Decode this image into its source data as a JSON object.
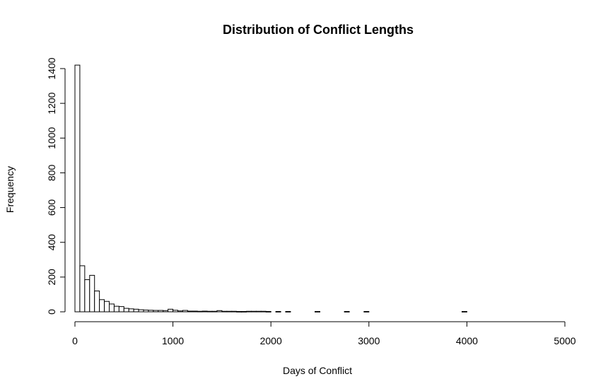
{
  "chart_data": {
    "type": "bar",
    "title": "Distribution of Conflict Lengths",
    "xlabel": "Days of Conflict",
    "ylabel": "Frequency",
    "xlim": [
      0,
      5000
    ],
    "ylim": [
      0,
      1400
    ],
    "x_ticks": [
      0,
      1000,
      2000,
      3000,
      4000,
      5000
    ],
    "y_ticks": [
      0,
      200,
      400,
      600,
      800,
      1000,
      1200,
      1400
    ],
    "bin_width": 50,
    "bin_starts": [
      0,
      50,
      100,
      150,
      200,
      250,
      300,
      350,
      400,
      450,
      500,
      550,
      600,
      650,
      700,
      750,
      800,
      850,
      900,
      950,
      1000,
      1050,
      1100,
      1150,
      1200,
      1250,
      1300,
      1350,
      1400,
      1450,
      1500,
      1550,
      1600,
      1650,
      1700,
      1750,
      1800,
      1850,
      1900,
      1950,
      2000,
      2050,
      2100,
      2150,
      2200,
      2250,
      2300,
      2350,
      2400,
      2450,
      2500,
      2550,
      2600,
      2650,
      2700,
      2750,
      2800,
      2850,
      2900,
      2950,
      3000,
      3050,
      3100,
      3150,
      3200,
      3250,
      3300,
      3350,
      3400,
      3450,
      3500,
      3550,
      3600,
      3650,
      3700,
      3750,
      3800,
      3850,
      3900,
      3950,
      4000,
      4050,
      4100,
      4150,
      4200,
      4250,
      4300,
      4350,
      4400,
      4450,
      4500,
      4550,
      4600,
      4650,
      4700,
      4750,
      4800,
      4850,
      4900,
      4950
    ],
    "values": [
      1420,
      265,
      185,
      210,
      120,
      70,
      60,
      45,
      32,
      30,
      20,
      17,
      15,
      12,
      10,
      9,
      8,
      8,
      7,
      15,
      9,
      5,
      8,
      4,
      4,
      3,
      4,
      3,
      3,
      7,
      3,
      3,
      3,
      2,
      2,
      3,
      3,
      3,
      3,
      2,
      0,
      2,
      0,
      2,
      0,
      0,
      0,
      0,
      0,
      2,
      0,
      0,
      0,
      0,
      0,
      2,
      0,
      0,
      0,
      2,
      0,
      0,
      0,
      0,
      0,
      0,
      0,
      0,
      0,
      0,
      0,
      0,
      0,
      0,
      0,
      0,
      0,
      0,
      0,
      2,
      0,
      0,
      0,
      0,
      0,
      0,
      0,
      0,
      0,
      0,
      0,
      0,
      0,
      0,
      0,
      0,
      0,
      0,
      0,
      0
    ]
  }
}
